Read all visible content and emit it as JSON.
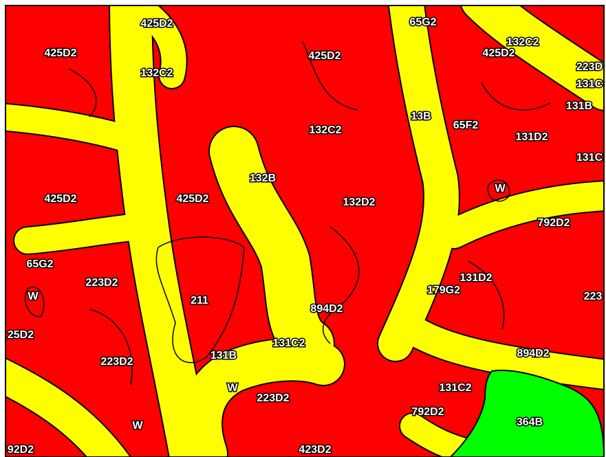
{
  "map": {
    "labels": [
      "425D2",
      "425D2",
      "132C2",
      "425D2",
      "65G2",
      "132C2",
      "425D2",
      "223D",
      "131C",
      "131B",
      "13B",
      "65F2",
      "132C2",
      "131D2",
      "131C",
      "132B",
      "W",
      "425D2",
      "425D2",
      "132D2",
      "792D2",
      "65G2",
      "223D2",
      "131D2",
      "179G2",
      "W",
      "223",
      "211",
      "894D2",
      "25D2",
      "131C2",
      "131B",
      "894D2",
      "223D2",
      "W",
      "131C2",
      "223D2",
      "792D2",
      "W",
      "364B",
      "92D2",
      "423D2"
    ]
  }
}
